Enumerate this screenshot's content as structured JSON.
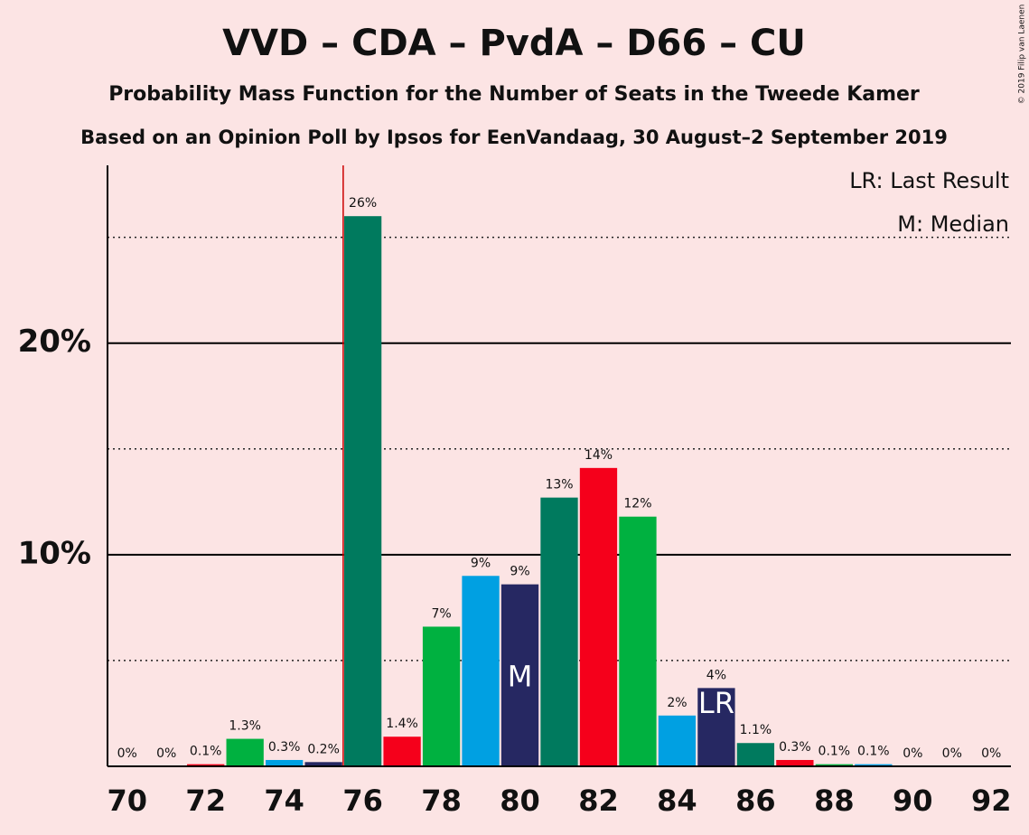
{
  "chart_data": {
    "type": "bar",
    "title": "VVD – CDA – PvdA – D66 – CU",
    "subtitle": "Probability Mass Function for the Number of Seats in the Tweede Kamer",
    "subtitle2": "Based on an Opinion Poll by Ipsos for EenVandaag, 30 August–2 September 2019",
    "copyright": "© 2019 Filip van Laenen",
    "legend": [
      "LR: Last Result",
      "M: Median"
    ],
    "x": [
      70,
      71,
      72,
      73,
      74,
      75,
      76,
      77,
      78,
      79,
      80,
      81,
      82,
      83,
      84,
      85,
      86,
      87,
      88,
      89,
      90,
      91,
      92
    ],
    "values": [
      0,
      0,
      0.1,
      1.3,
      0.3,
      0.2,
      26,
      1.4,
      6.6,
      9,
      8.6,
      12.7,
      14.1,
      11.8,
      2.4,
      3.7,
      1.1,
      0.3,
      0.1,
      0.1,
      0,
      0,
      0
    ],
    "value_labels": [
      "0%",
      "0%",
      "0.1%",
      "1.3%",
      "0.3%",
      "0.2%",
      "26%",
      "1.4%",
      "7%",
      "9%",
      "9%",
      "13%",
      "14%",
      "12%",
      "2%",
      "4%",
      "1.1%",
      "0.3%",
      "0.1%",
      "0.1%",
      "0%",
      "0%",
      "0%"
    ],
    "colors": [
      "#262862",
      "#007a5e",
      "#f5001b",
      "#00b140",
      "#00a0e2",
      "#262862",
      "#007a5e",
      "#f5001b",
      "#00b140",
      "#00a0e2",
      "#262862",
      "#007a5e",
      "#f5001b",
      "#00b140",
      "#00a0e2",
      "#262862",
      "#007a5e",
      "#f5001b",
      "#00b140",
      "#00a0e2",
      "#262862",
      "#007a5e",
      "#f5001b"
    ],
    "xlim": [
      69.5,
      92.5
    ],
    "xticks": [
      70,
      72,
      74,
      76,
      78,
      80,
      82,
      84,
      86,
      88,
      90,
      92
    ],
    "ylim": [
      0,
      28.4
    ],
    "yticks": [
      {
        "value": 10,
        "label": "10%"
      },
      {
        "value": 20,
        "label": "20%"
      }
    ],
    "minor_yticks": [
      5,
      15,
      25
    ],
    "majority_line": 75.5,
    "median": {
      "x": 80,
      "label": "M"
    },
    "last_result": {
      "x": 85,
      "label": "LR"
    }
  }
}
